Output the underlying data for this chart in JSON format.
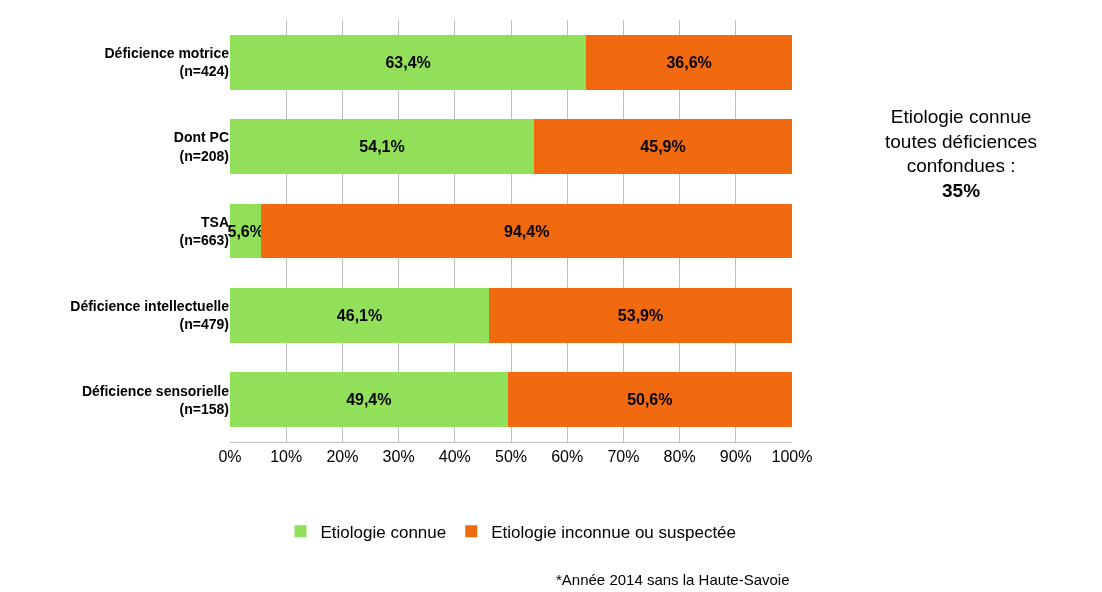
{
  "chart_data": {
    "type": "bar",
    "orientation": "horizontal",
    "stacked": true,
    "categories": [
      "Déficience motrice\n(n=424)",
      "Dont PC\n(n=208)",
      "TSA\n(n=663)",
      "Déficience intellectuelle\n(n=479)",
      "Déficience sensorielle\n(n=158)"
    ],
    "series": [
      {
        "name": "Etiologie connue",
        "color": "#92e05a",
        "values": [
          63.4,
          54.1,
          5.6,
          46.1,
          49.4
        ],
        "value_labels": [
          "63,4%",
          "54,1%",
          "5,6%",
          "46,1%",
          "49,4%"
        ]
      },
      {
        "name": "Etiologie inconnue ou suspectée",
        "color": "#f26a10",
        "values": [
          36.6,
          45.9,
          94.4,
          53.9,
          50.6
        ],
        "value_labels": [
          "36,6%",
          "45,9%",
          "94,4%",
          "53,9%",
          "50,6%"
        ]
      }
    ],
    "xlim": [
      0,
      100
    ],
    "xticks": [
      {
        "value": 0,
        "label": "0%"
      },
      {
        "value": 10,
        "label": "10%"
      },
      {
        "value": 20,
        "label": "20%"
      },
      {
        "value": 30,
        "label": "30%"
      },
      {
        "value": 40,
        "label": "40%"
      },
      {
        "value": 50,
        "label": "50%"
      },
      {
        "value": 60,
        "label": "60%"
      },
      {
        "value": 70,
        "label": "70%"
      },
      {
        "value": 80,
        "label": "80%"
      },
      {
        "value": 90,
        "label": "90%"
      },
      {
        "value": 100,
        "label": "100%"
      }
    ],
    "grid": "x",
    "legend": "bottom",
    "annotations": [
      "Etiologie connue\ntoutes déficiences\nconfondues :\n35%",
      "*Année 2014 sans la Haute-Savoie"
    ]
  }
}
